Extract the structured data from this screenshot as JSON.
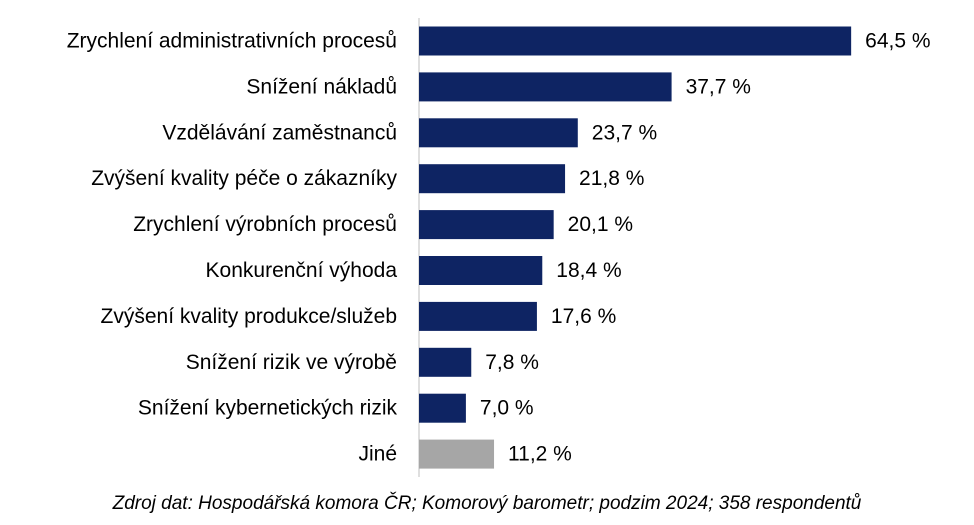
{
  "chart_data": {
    "type": "bar",
    "orientation": "horizontal",
    "categories": [
      "Zrychlení administrativních procesů",
      "Snížení nákladů",
      "Vzdělávání zaměstnanců",
      "Zvýšení kvality péče o zákazníky",
      "Zrychlení výrobních procesů",
      "Konkurenční výhoda",
      "Zvýšení kvality produkce/služeb",
      "Snížení rizik ve výrobě",
      "Snížení kybernetických rizik",
      "Jiné"
    ],
    "values": [
      64.5,
      37.7,
      23.7,
      21.8,
      20.1,
      18.4,
      17.6,
      7.8,
      7.0,
      11.2
    ],
    "value_labels": [
      "64,5 %",
      "37,7 %",
      "23,7 %",
      "21,8 %",
      "20,1 %",
      "18,4 %",
      "17,6 %",
      "7,8 %",
      "7,0 %",
      "11,2 %"
    ],
    "bar_colors": [
      "#0e2463",
      "#0e2463",
      "#0e2463",
      "#0e2463",
      "#0e2463",
      "#0e2463",
      "#0e2463",
      "#0e2463",
      "#0e2463",
      "#a6a6a6"
    ],
    "axis_line_color": "#bfbfbf",
    "xlim": [
      0,
      70
    ],
    "grid": false,
    "legend": "none"
  },
  "source": "Zdroj dat: Hospodářská komora ČR; Komorový barometr; podzim 2024; 358 respondentů"
}
